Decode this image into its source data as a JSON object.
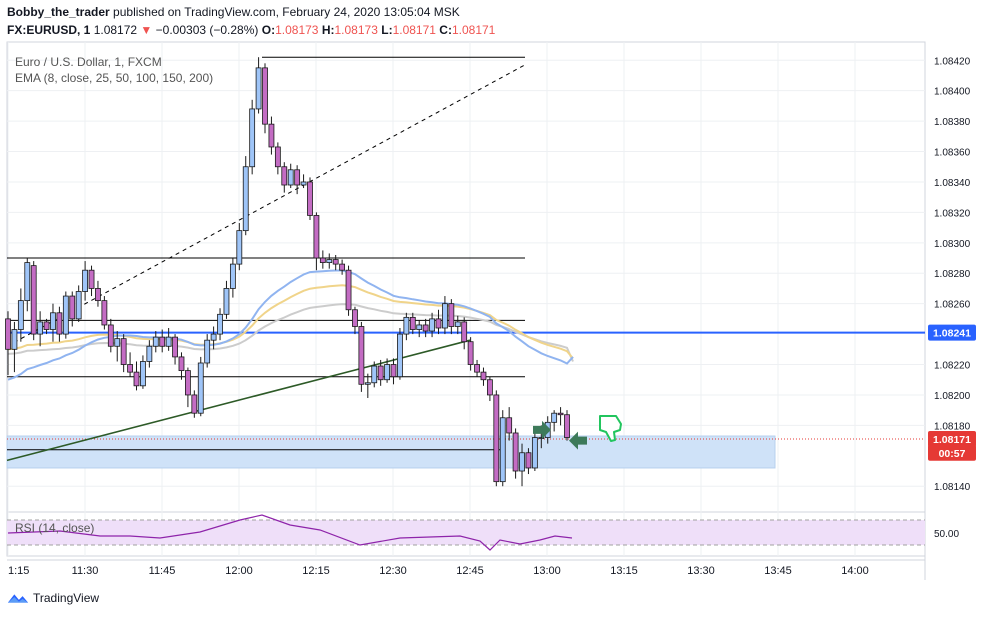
{
  "header": {
    "author": "Bobby_the_trader",
    "published_text": "published on TradingView.com, February 24, 2020 13:05:04 MSK",
    "symbol": "FX:EURUSD, 1",
    "last_price": "1.08172",
    "change": "−0.00303 (−0.28%)",
    "o_label": "O:",
    "o_value": "1.08173",
    "h_label": "H:",
    "h_value": "1.08173",
    "l_label": "L:",
    "l_value": "1.08171",
    "c_label": "C:",
    "c_value": "1.08171"
  },
  "legend": {
    "instrument": "Euro / U.S. Dollar, 1, FXCM",
    "ema": "EMA (8, close, 25, 50, 100, 150, 200)",
    "rsi": "RSI (14, close)"
  },
  "footer": {
    "brand": "TradingView"
  },
  "colors": {
    "up_fill": "#9fc5f8",
    "down_fill": "#c36cc3",
    "wick": "#1a1a1a",
    "hline": "#000000",
    "blue_line": "#2962ff",
    "trend": "#2d5a27",
    "zone": "#cfe2f8",
    "rsi_band": "#efdff9",
    "rsi_line": "#8e24aa",
    "ema_blue": "#90b4f0",
    "ema_yellow": "#f0d48a",
    "ema_grey": "#cccccc",
    "arrow_green": "#3d7a5a",
    "thumb_green": "#22c55e",
    "price_label": "#e53935",
    "grid": "#eef0f3"
  },
  "chart_data": {
    "type": "candlestick",
    "title": "Euro / U.S. Dollar, 1, FXCM",
    "x_ticks": [
      "1:15",
      "11:30",
      "11:45",
      "12:00",
      "12:15",
      "12:30",
      "12:45",
      "13:00",
      "13:15",
      "13:30",
      "13:45",
      "14:00"
    ],
    "y_ticks": [
      "1.08420",
      "1.08400",
      "1.08380",
      "1.08360",
      "1.08340",
      "1.08320",
      "1.08300",
      "1.08280",
      "1.08260",
      "1.08220",
      "1.08200",
      "1.08180",
      "1.08140"
    ],
    "ylim": [
      1.08127,
      1.08432
    ],
    "price_labels": [
      {
        "value": 1.08241,
        "text": "1.08241",
        "style": "blue"
      },
      {
        "value": 1.08171,
        "text": "1.08171",
        "style": "red"
      },
      {
        "value": 1.08162,
        "text": "00:57",
        "style": "red"
      }
    ],
    "horizontal_levels": [
      1.08422,
      1.0829,
      1.08249,
      1.08212,
      1.08164
    ],
    "blue_level": 1.08241,
    "zone": [
      1.08152,
      1.08173
    ],
    "candles": [
      [
        1.0825,
        1.0823,
        1.08255,
        1.08213
      ],
      [
        1.0823,
        1.08243,
        1.08248,
        1.08215
      ],
      [
        1.08243,
        1.08262,
        1.0827,
        1.08235
      ],
      [
        1.08262,
        1.08287,
        1.0829,
        1.08255
      ],
      [
        1.08285,
        1.0824,
        1.08288,
        1.08236
      ],
      [
        1.0824,
        1.08248,
        1.08255,
        1.08232
      ],
      [
        1.08248,
        1.08243,
        1.0825,
        1.0824
      ],
      [
        1.08243,
        1.08254,
        1.0826,
        1.08235
      ],
      [
        1.08254,
        1.0824,
        1.08258,
        1.08235
      ],
      [
        1.0824,
        1.08265,
        1.08268,
        1.08237
      ],
      [
        1.08265,
        1.0825,
        1.08268,
        1.08245
      ],
      [
        1.0825,
        1.08268,
        1.08272,
        1.08248
      ],
      [
        1.08268,
        1.08282,
        1.08288,
        1.08262
      ],
      [
        1.08282,
        1.0827,
        1.08285,
        1.08265
      ],
      [
        1.0827,
        1.08262,
        1.08275,
        1.08258
      ],
      [
        1.08262,
        1.08246,
        1.08265,
        1.08243
      ],
      [
        1.08246,
        1.08232,
        1.0825,
        1.08228
      ],
      [
        1.08232,
        1.08237,
        1.08242,
        1.08222
      ],
      [
        1.08237,
        1.0822,
        1.0824,
        1.08215
      ],
      [
        1.0822,
        1.08215,
        1.08228,
        1.08212
      ],
      [
        1.08215,
        1.08206,
        1.08222,
        1.08203
      ],
      [
        1.08206,
        1.08222,
        1.08226,
        1.08204
      ],
      [
        1.08222,
        1.08232,
        1.08236,
        1.08218
      ],
      [
        1.08232,
        1.08238,
        1.08242,
        1.08228
      ],
      [
        1.08238,
        1.08232,
        1.08243,
        1.08228
      ],
      [
        1.08232,
        1.08238,
        1.08244,
        1.08229
      ],
      [
        1.08238,
        1.08225,
        1.0824,
        1.0822
      ],
      [
        1.08225,
        1.08216,
        1.08228,
        1.0821
      ],
      [
        1.08216,
        1.082,
        1.08218,
        1.08192
      ],
      [
        1.082,
        1.08188,
        1.08203,
        1.08185
      ],
      [
        1.08188,
        1.08221,
        1.08225,
        1.08186
      ],
      [
        1.08221,
        1.08236,
        1.0824,
        1.08218
      ],
      [
        1.08236,
        1.0824,
        1.08245,
        1.0823
      ],
      [
        1.0824,
        1.08253,
        1.08257,
        1.08236
      ],
      [
        1.08253,
        1.0827,
        1.08275,
        1.0825
      ],
      [
        1.0827,
        1.08286,
        1.0829,
        1.08264
      ],
      [
        1.08286,
        1.08308,
        1.08313,
        1.08282
      ],
      [
        1.08308,
        1.0835,
        1.08357,
        1.08305
      ],
      [
        1.0835,
        1.08388,
        1.08394,
        1.08345
      ],
      [
        1.08388,
        1.08415,
        1.08422,
        1.08385
      ],
      [
        1.08415,
        1.08378,
        1.08418,
        1.08372
      ],
      [
        1.08378,
        1.08363,
        1.08383,
        1.08358
      ],
      [
        1.08363,
        1.0835,
        1.08366,
        1.08345
      ],
      [
        1.0835,
        1.08338,
        1.08353,
        1.08333
      ],
      [
        1.08338,
        1.08348,
        1.08352,
        1.08336
      ],
      [
        1.08348,
        1.08338,
        1.08351,
        1.08332
      ],
      [
        1.08338,
        1.0834,
        1.08345,
        1.08336
      ],
      [
        1.0834,
        1.08318,
        1.08343,
        1.08315
      ],
      [
        1.08318,
        1.0829,
        1.0832,
        1.08282
      ],
      [
        1.0829,
        1.08287,
        1.08295,
        1.08283
      ],
      [
        1.08287,
        1.08289,
        1.08293,
        1.08283
      ],
      [
        1.08289,
        1.08286,
        1.08292,
        1.08282
      ],
      [
        1.08286,
        1.08282,
        1.08289,
        1.08279
      ],
      [
        1.08282,
        1.08256,
        1.08285,
        1.08252
      ],
      [
        1.08256,
        1.08245,
        1.08258,
        1.0824
      ],
      [
        1.08245,
        1.08207,
        1.08248,
        1.08202
      ],
      [
        1.08207,
        1.08208,
        1.08214,
        1.08198
      ],
      [
        1.08208,
        1.08219,
        1.08222,
        1.08205
      ],
      [
        1.08219,
        1.0821,
        1.08223,
        1.08206
      ],
      [
        1.0821,
        1.0822,
        1.08224,
        1.08208
      ],
      [
        1.0822,
        1.08212,
        1.08224,
        1.08207
      ],
      [
        1.08212,
        1.0824,
        1.08244,
        1.0821
      ],
      [
        1.0824,
        1.08251,
        1.08254,
        1.08236
      ],
      [
        1.08251,
        1.08243,
        1.08254,
        1.0824
      ],
      [
        1.08243,
        1.08246,
        1.08249,
        1.08238
      ],
      [
        1.08246,
        1.08242,
        1.0825,
        1.08238
      ],
      [
        1.08242,
        1.0825,
        1.08254,
        1.08238
      ],
      [
        1.0825,
        1.08244,
        1.08256,
        1.0824
      ],
      [
        1.08244,
        1.0826,
        1.08265,
        1.0824
      ],
      [
        1.0826,
        1.08245,
        1.08263,
        1.0824
      ],
      [
        1.08245,
        1.08248,
        1.08252,
        1.0824
      ],
      [
        1.08248,
        1.08235,
        1.08251,
        1.0823
      ],
      [
        1.08235,
        1.0822,
        1.08238,
        1.08216
      ],
      [
        1.0822,
        1.08215,
        1.08223,
        1.08212
      ],
      [
        1.08215,
        1.0821,
        1.08218,
        1.08206
      ],
      [
        1.0821,
        1.082,
        1.08212,
        1.08196
      ],
      [
        1.082,
        1.08143,
        1.08203,
        1.0814
      ],
      [
        1.08143,
        1.08185,
        1.0819,
        1.0814
      ],
      [
        1.08185,
        1.08175,
        1.08192,
        1.0817
      ],
      [
        1.08175,
        1.0815,
        1.08178,
        1.08145
      ],
      [
        1.0815,
        1.08162,
        1.08168,
        1.0814
      ],
      [
        1.08162,
        1.08152,
        1.08165,
        1.08148
      ],
      [
        1.08152,
        1.08172,
        1.08175,
        1.0815
      ],
      [
        1.08172,
        1.08172,
        1.0818,
        1.08165
      ],
      [
        1.08172,
        1.08182,
        1.08186,
        1.08168
      ],
      [
        1.08182,
        1.08188,
        1.0819,
        1.08176
      ],
      [
        1.08188,
        1.08187,
        1.08192,
        1.0818
      ],
      [
        1.08187,
        1.08172,
        1.0819,
        1.0817
      ]
    ]
  }
}
